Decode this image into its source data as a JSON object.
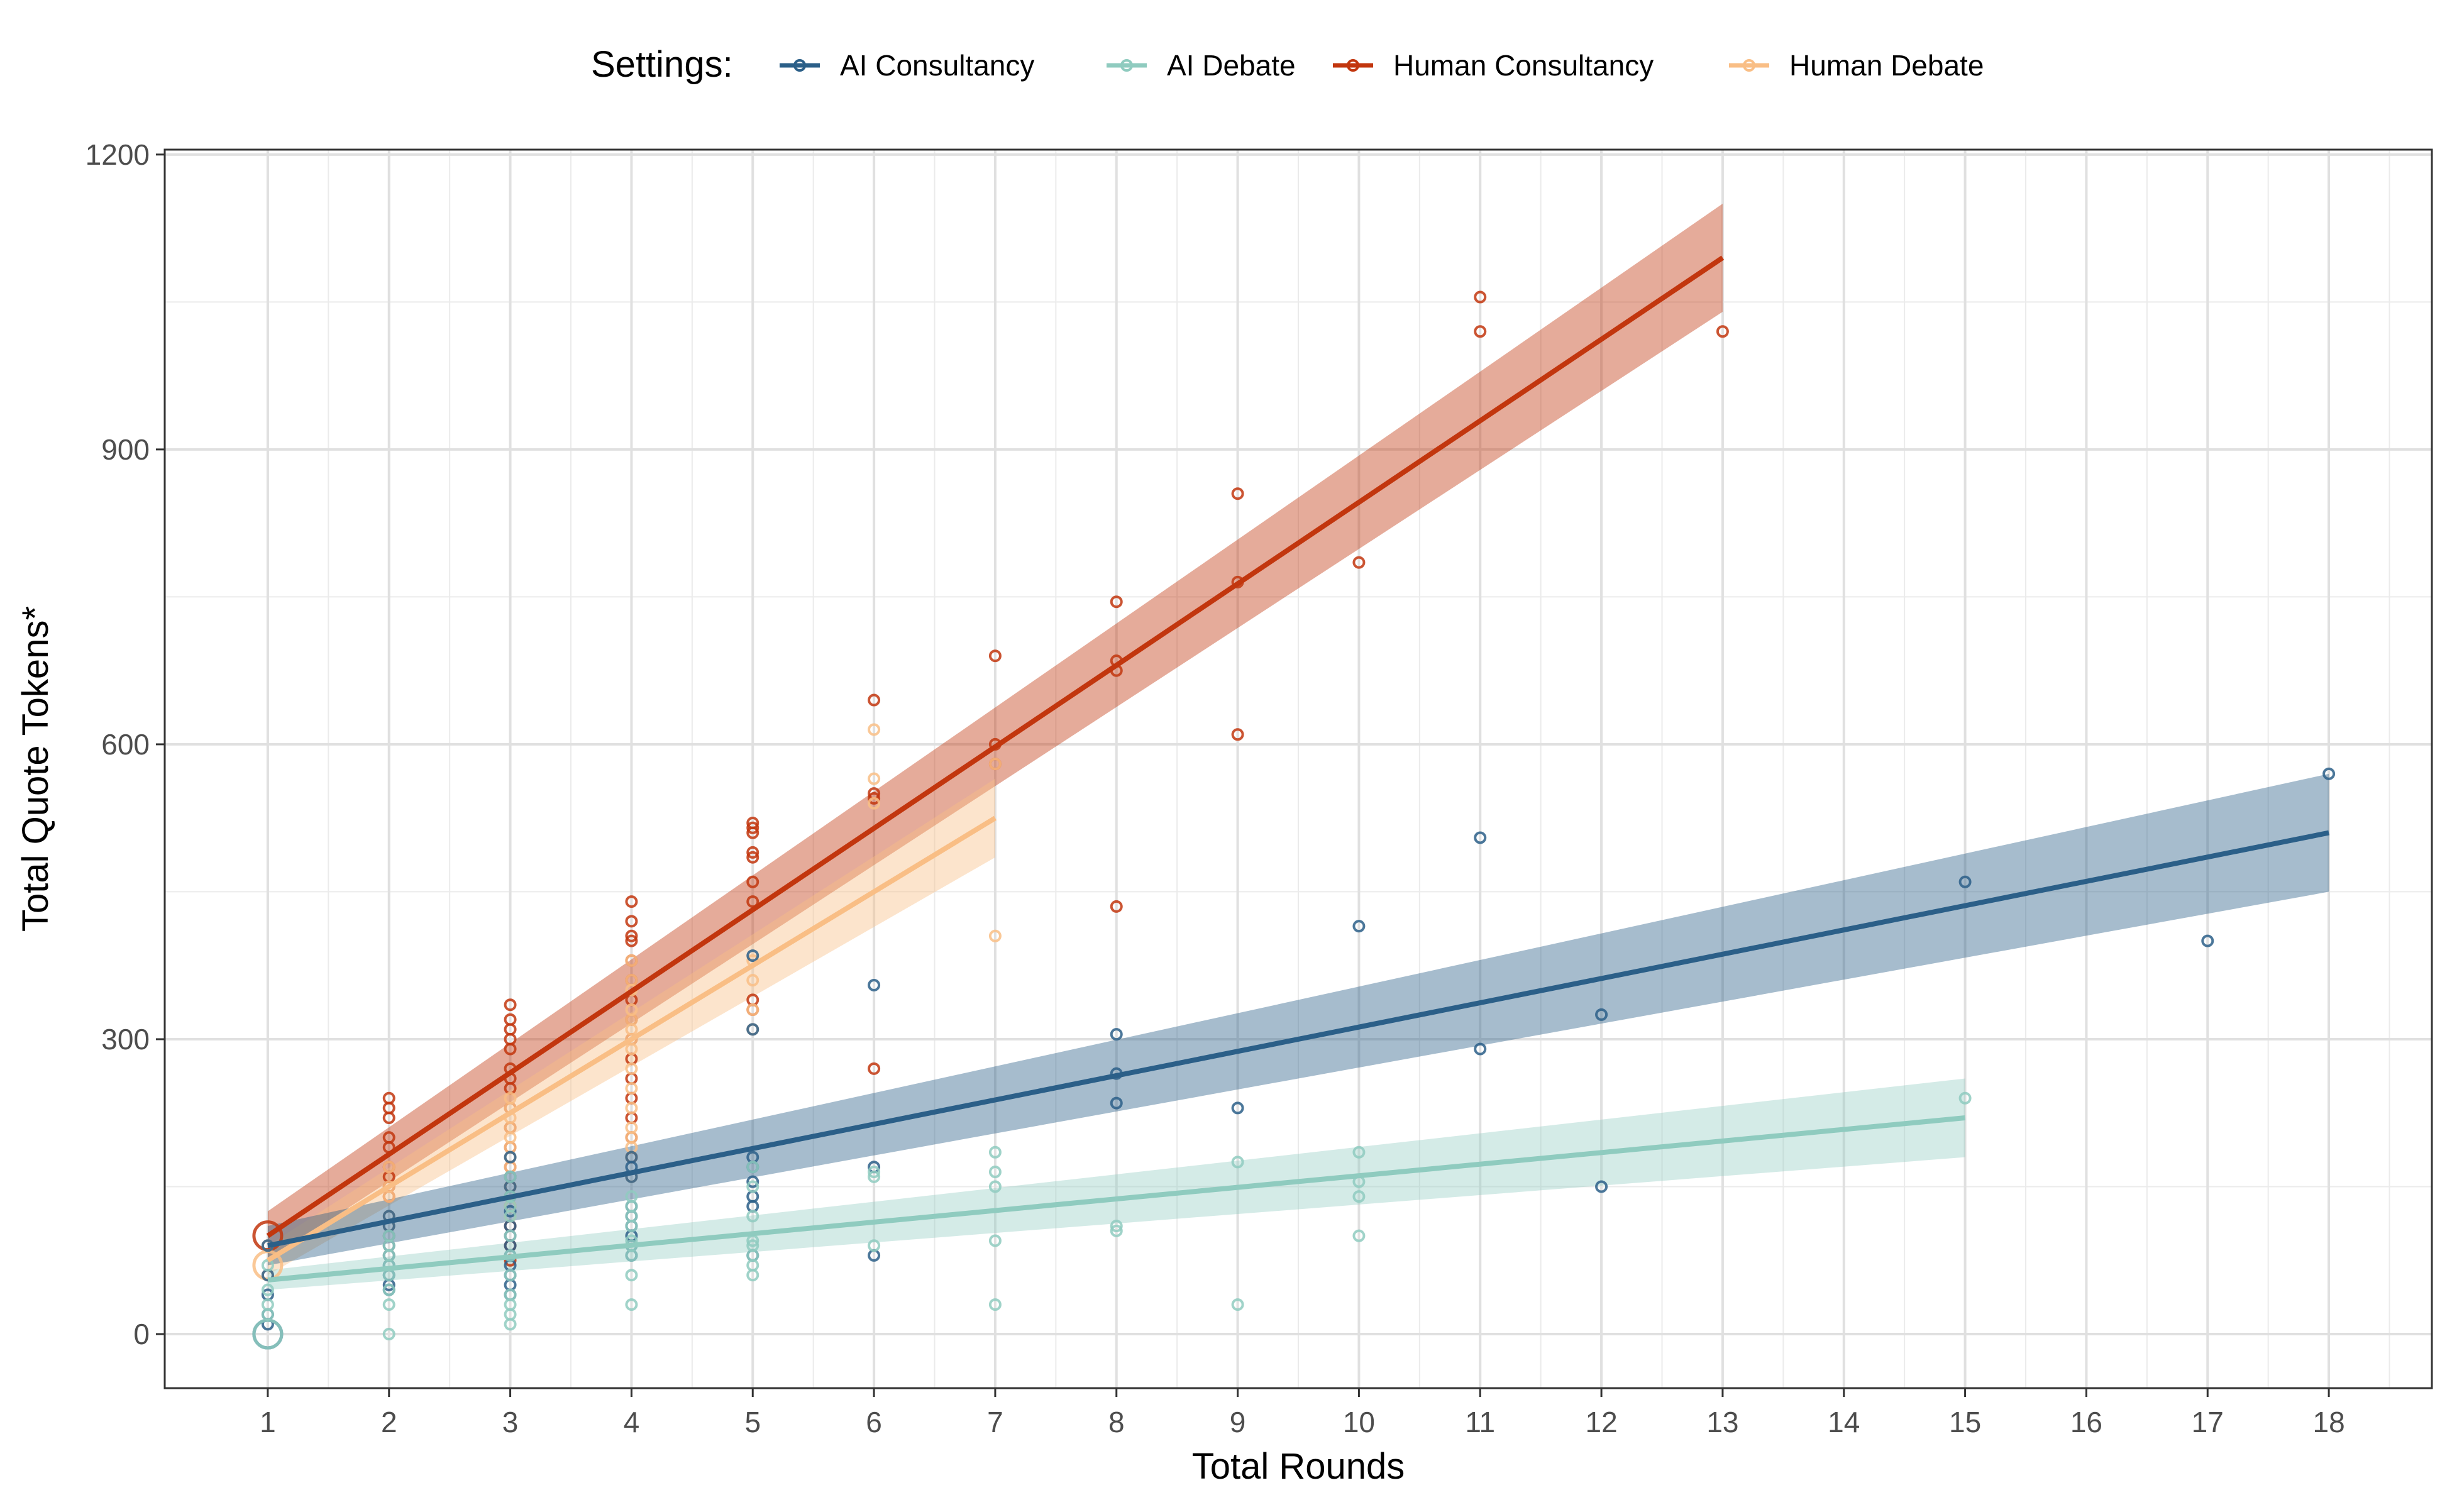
{
  "chart_data": {
    "type": "scatter",
    "title": "",
    "xlabel": "Total Rounds",
    "ylabel": "Total Quote Tokens*",
    "xlim": [
      0.15,
      18.85
    ],
    "ylim": [
      -55,
      1205
    ],
    "x_ticks": [
      1,
      2,
      3,
      4,
      5,
      6,
      7,
      8,
      9,
      10,
      11,
      12,
      13,
      14,
      15,
      16,
      17,
      18
    ],
    "y_ticks": [
      0,
      300,
      600,
      900,
      1200
    ],
    "grid": true,
    "legend": {
      "title": "Settings:",
      "position": "top",
      "entries": [
        "AI Consultancy",
        "AI Debate",
        "Human Consultancy",
        "Human Debate"
      ]
    },
    "series": [
      {
        "name": "Human Consultancy",
        "color": "#C2360E",
        "fit": {
          "x": [
            1,
            13
          ],
          "y": [
            100,
            1095
          ]
        },
        "band": {
          "lower": [
            75,
            1040
          ],
          "upper": [
            125,
            1150
          ]
        },
        "points": [
          [
            1,
            100
          ],
          [
            2,
            200
          ],
          [
            2,
            240
          ],
          [
            2,
            230
          ],
          [
            2,
            220
          ],
          [
            2,
            190
          ],
          [
            2,
            170
          ],
          [
            2,
            160
          ],
          [
            2,
            140
          ],
          [
            2,
            150
          ],
          [
            3,
            290
          ],
          [
            3,
            270
          ],
          [
            3,
            335
          ],
          [
            3,
            320
          ],
          [
            3,
            310
          ],
          [
            3,
            300
          ],
          [
            3,
            260
          ],
          [
            3,
            250
          ],
          [
            3,
            230
          ],
          [
            3,
            210
          ],
          [
            3,
            190
          ],
          [
            3,
            170
          ],
          [
            3,
            150
          ],
          [
            3,
            130
          ],
          [
            3,
            110
          ],
          [
            3,
            90
          ],
          [
            3,
            75
          ],
          [
            4,
            405
          ],
          [
            4,
            340
          ],
          [
            4,
            440
          ],
          [
            4,
            420
          ],
          [
            4,
            400
          ],
          [
            4,
            380
          ],
          [
            4,
            360
          ],
          [
            4,
            320
          ],
          [
            4,
            300
          ],
          [
            4,
            280
          ],
          [
            4,
            260
          ],
          [
            4,
            240
          ],
          [
            4,
            220
          ],
          [
            4,
            200
          ],
          [
            4,
            180
          ],
          [
            5,
            515
          ],
          [
            5,
            520
          ],
          [
            5,
            510
          ],
          [
            5,
            490
          ],
          [
            5,
            485
          ],
          [
            5,
            460
          ],
          [
            5,
            440
          ],
          [
            5,
            340
          ],
          [
            5,
            330
          ],
          [
            6,
            645
          ],
          [
            6,
            550
          ],
          [
            6,
            545
          ],
          [
            6,
            270
          ],
          [
            7,
            690
          ],
          [
            7,
            600
          ],
          [
            7,
            580
          ],
          [
            8,
            745
          ],
          [
            8,
            685
          ],
          [
            8,
            675
          ],
          [
            8,
            435
          ],
          [
            9,
            855
          ],
          [
            9,
            765
          ],
          [
            9,
            610
          ],
          [
            10,
            785
          ],
          [
            11,
            1055
          ],
          [
            11,
            1020
          ],
          [
            13,
            1020
          ]
        ]
      },
      {
        "name": "Human Debate",
        "color": "#F9BE85",
        "fit": {
          "x": [
            1,
            7
          ],
          "y": [
            75,
            525
          ]
        },
        "band": {
          "lower": [
            60,
            485
          ],
          "upper": [
            90,
            565
          ]
        },
        "points": [
          [
            1,
            70
          ],
          [
            1,
            90
          ],
          [
            1,
            60
          ],
          [
            2,
            140
          ],
          [
            2,
            170
          ],
          [
            2,
            150
          ],
          [
            2,
            120
          ],
          [
            2,
            110
          ],
          [
            2,
            100
          ],
          [
            2,
            90
          ],
          [
            2,
            80
          ],
          [
            3,
            240
          ],
          [
            3,
            190
          ],
          [
            3,
            170
          ],
          [
            3,
            230
          ],
          [
            3,
            220
          ],
          [
            3,
            210
          ],
          [
            3,
            200
          ],
          [
            3,
            180
          ],
          [
            3,
            160
          ],
          [
            3,
            150
          ],
          [
            3,
            140
          ],
          [
            3,
            130
          ],
          [
            3,
            120
          ],
          [
            3,
            100
          ],
          [
            4,
            330
          ],
          [
            4,
            300
          ],
          [
            4,
            380
          ],
          [
            4,
            360
          ],
          [
            4,
            350
          ],
          [
            4,
            320
          ],
          [
            4,
            310
          ],
          [
            4,
            290
          ],
          [
            4,
            270
          ],
          [
            4,
            250
          ],
          [
            4,
            230
          ],
          [
            4,
            210
          ],
          [
            4,
            200
          ],
          [
            4,
            190
          ],
          [
            4,
            180
          ],
          [
            4,
            160
          ],
          [
            5,
            380
          ],
          [
            5,
            360
          ],
          [
            5,
            330
          ],
          [
            5,
            310
          ],
          [
            6,
            615
          ],
          [
            6,
            565
          ],
          [
            6,
            540
          ],
          [
            7,
            405
          ],
          [
            7,
            580
          ]
        ]
      },
      {
        "name": "AI Consultancy",
        "color": "#2B5F88",
        "fit": {
          "x": [
            1,
            18
          ],
          "y": [
            90,
            510
          ]
        },
        "band": {
          "lower": [
            70,
            450
          ],
          "upper": [
            110,
            570
          ]
        },
        "points": [
          [
            1,
            0
          ],
          [
            1,
            90
          ],
          [
            1,
            10
          ],
          [
            1,
            40
          ],
          [
            1,
            60
          ],
          [
            1,
            20
          ],
          [
            2,
            110
          ],
          [
            2,
            120
          ],
          [
            2,
            100
          ],
          [
            2,
            90
          ],
          [
            2,
            80
          ],
          [
            2,
            70
          ],
          [
            2,
            60
          ],
          [
            2,
            50
          ],
          [
            2,
            45
          ],
          [
            3,
            150
          ],
          [
            3,
            125
          ],
          [
            3,
            180
          ],
          [
            3,
            160
          ],
          [
            3,
            140
          ],
          [
            3,
            110
          ],
          [
            3,
            100
          ],
          [
            3,
            90
          ],
          [
            3,
            80
          ],
          [
            3,
            70
          ],
          [
            3,
            60
          ],
          [
            3,
            50
          ],
          [
            3,
            40
          ],
          [
            4,
            170
          ],
          [
            4,
            180
          ],
          [
            4,
            160
          ],
          [
            4,
            130
          ],
          [
            4,
            120
          ],
          [
            4,
            110
          ],
          [
            4,
            100
          ],
          [
            4,
            90
          ],
          [
            4,
            80
          ],
          [
            5,
            155
          ],
          [
            5,
            385
          ],
          [
            5,
            310
          ],
          [
            5,
            180
          ],
          [
            5,
            170
          ],
          [
            5,
            140
          ],
          [
            5,
            130
          ],
          [
            5,
            80
          ],
          [
            6,
            355
          ],
          [
            6,
            170
          ],
          [
            6,
            80
          ],
          [
            8,
            305
          ],
          [
            8,
            265
          ],
          [
            8,
            235
          ],
          [
            9,
            230
          ],
          [
            10,
            415
          ],
          [
            11,
            505
          ],
          [
            11,
            290
          ],
          [
            12,
            325
          ],
          [
            12,
            150
          ],
          [
            15,
            460
          ],
          [
            17,
            400
          ],
          [
            18,
            570
          ]
        ]
      },
      {
        "name": "AI Debate",
        "color": "#8FCBBF",
        "fit": {
          "x": [
            1,
            15
          ],
          "y": [
            55,
            220
          ]
        },
        "band": {
          "lower": [
            45,
            180
          ],
          "upper": [
            65,
            260
          ]
        },
        "points": [
          [
            1,
            0
          ],
          [
            1,
            45
          ],
          [
            1,
            30
          ],
          [
            1,
            20
          ],
          [
            1,
            70
          ],
          [
            2,
            45
          ],
          [
            2,
            0
          ],
          [
            2,
            30
          ],
          [
            2,
            60
          ],
          [
            2,
            70
          ],
          [
            2,
            80
          ],
          [
            2,
            90
          ],
          [
            2,
            100
          ],
          [
            3,
            120
          ],
          [
            3,
            10
          ],
          [
            3,
            20
          ],
          [
            3,
            30
          ],
          [
            3,
            40
          ],
          [
            3,
            60
          ],
          [
            3,
            80
          ],
          [
            3,
            100
          ],
          [
            3,
            130
          ],
          [
            3,
            140
          ],
          [
            3,
            160
          ],
          [
            4,
            95
          ],
          [
            4,
            30
          ],
          [
            4,
            60
          ],
          [
            4,
            80
          ],
          [
            4,
            90
          ],
          [
            4,
            110
          ],
          [
            4,
            120
          ],
          [
            4,
            130
          ],
          [
            4,
            140
          ],
          [
            5,
            150
          ],
          [
            5,
            60
          ],
          [
            5,
            70
          ],
          [
            5,
            80
          ],
          [
            5,
            90
          ],
          [
            5,
            95
          ],
          [
            5,
            120
          ],
          [
            5,
            170
          ],
          [
            6,
            90
          ],
          [
            6,
            160
          ],
          [
            6,
            165
          ],
          [
            7,
            30
          ],
          [
            7,
            95
          ],
          [
            7,
            150
          ],
          [
            7,
            165
          ],
          [
            7,
            185
          ],
          [
            8,
            110
          ],
          [
            8,
            105
          ],
          [
            9,
            30
          ],
          [
            9,
            175
          ],
          [
            10,
            100
          ],
          [
            10,
            140
          ],
          [
            10,
            155
          ],
          [
            10,
            185
          ],
          [
            15,
            240
          ]
        ]
      }
    ]
  }
}
